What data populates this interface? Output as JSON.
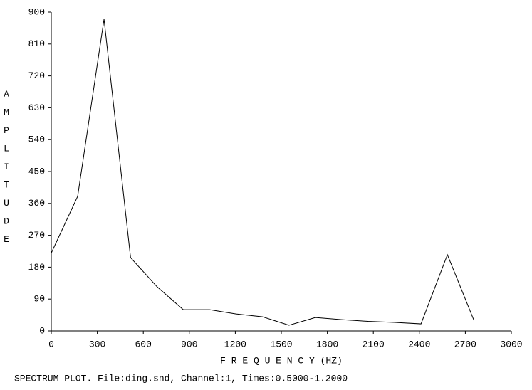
{
  "chart_data": {
    "type": "line",
    "x_label": "F R E Q U E N C Y (HZ)",
    "y_label": "AMPLITUDE",
    "footer": "SPECTRUM PLOT. File:ding.snd, Channel:1, Times:0.5000-1.2000",
    "x": [
      0,
      172,
      344,
      517,
      689,
      861,
      1033,
      1205,
      1378,
      1550,
      1722,
      1894,
      2067,
      2239,
      2411,
      2583,
      2756
    ],
    "series": [
      {
        "name": "Amplitude",
        "color": "#000000",
        "values": [
          220,
          380,
          880,
          207,
          125,
          60,
          60,
          48,
          40,
          16,
          38,
          32,
          27,
          24,
          20,
          215,
          30
        ]
      }
    ],
    "xlim": [
      0,
      3000
    ],
    "xticks": [
      0,
      300,
      600,
      900,
      1200,
      1500,
      1800,
      2100,
      2400,
      2700,
      3000
    ],
    "ylim": [
      0,
      900
    ],
    "yticks": [
      0,
      90,
      180,
      270,
      360,
      450,
      540,
      630,
      720,
      810,
      900
    ]
  }
}
